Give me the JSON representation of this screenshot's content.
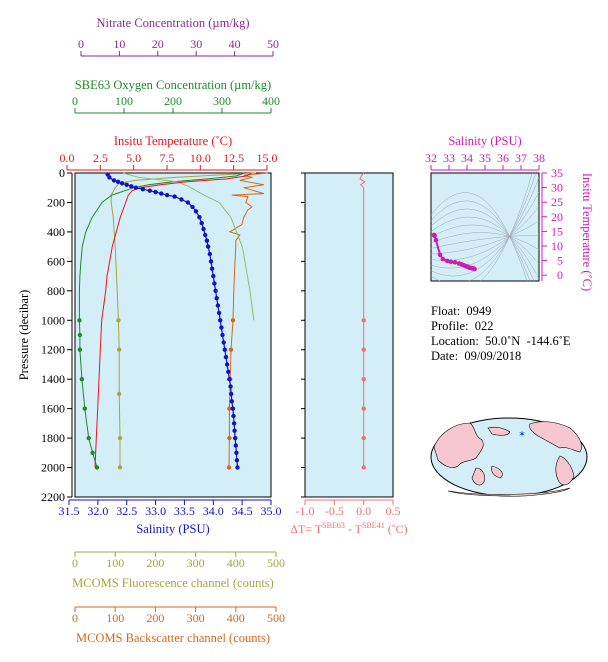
{
  "colors": {
    "nitrate": "#8b2d8b",
    "oxygen": "#1f8a2a",
    "temperature": "#e8141e",
    "salinity": "#1212c8",
    "fluorescence": "#a5a546",
    "backscatter": "#d2691e",
    "delta_t": "#f07070",
    "ts_axis": "#d01ab8",
    "plot_bg": "#d4eef8"
  },
  "labels": {
    "nitrate_title": "Nitrate Concentration (µm/kg)",
    "oxygen_title": "SBE63 Oxygen Concentration (µm/kg)",
    "temperature_title": "Insitu Temperature (˚C)",
    "salinity_title": "Salinity (PSU)",
    "pressure_title": "Pressure (decibar)",
    "fluorescence_title": "MCOMS Fluorescence channel (counts)",
    "backscatter_title": "MCOMS Backscatter channel (counts)",
    "ts_top_title": "Salinity (PSU)",
    "ts_right_title": "Insitu Temperature (˚C)",
    "delta_prefix": "ΔT= T",
    "delta_sup1": "SBE63",
    "delta_mid": " - T",
    "delta_sup2": "SBE41",
    "delta_suffix": " (˚C)"
  },
  "info": {
    "float": "Float:  0949",
    "profile": "Profile:  022",
    "location": "Location:  50.0˚N  -144.6˚E",
    "date": "Date:  09/09/2018"
  },
  "chart_data": [
    {
      "type": "line",
      "panel": "profiles",
      "ylim": [
        2200,
        0
      ],
      "y_ticks": [
        0,
        200,
        400,
        600,
        800,
        1000,
        1200,
        1400,
        1600,
        1800,
        2000,
        2200
      ],
      "axes": {
        "nitrate": {
          "range": [
            0,
            50
          ],
          "ticks": [
            0,
            10,
            20,
            30,
            40,
            50
          ]
        },
        "oxygen": {
          "range": [
            0,
            400
          ],
          "ticks": [
            0,
            100,
            200,
            300,
            400
          ]
        },
        "temperature": {
          "range": [
            0,
            15
          ],
          "ticks": [
            "0.0",
            "2.5",
            "5.0",
            "7.5",
            "10.0",
            "12.5",
            "15.0"
          ]
        },
        "salinity": {
          "range": [
            31.5,
            35
          ],
          "ticks": [
            "31.5",
            "32.0",
            "32.5",
            "33.0",
            "33.5",
            "34.0",
            "34.5",
            "35.0"
          ]
        },
        "fluorescence": {
          "range": [
            0,
            500
          ],
          "ticks": [
            0,
            100,
            200,
            300,
            400,
            500
          ]
        },
        "backscatter": {
          "range": [
            0,
            500
          ],
          "ticks": [
            0,
            100,
            200,
            300,
            400,
            500
          ]
        }
      },
      "series": {
        "salinity": {
          "p": [
            10,
            30,
            50,
            60,
            70,
            80,
            90,
            100,
            110,
            120,
            130,
            140,
            150,
            160,
            180,
            200,
            230,
            260,
            300,
            340,
            380,
            420,
            460,
            500,
            550,
            600,
            650,
            700,
            750,
            800,
            850,
            900,
            950,
            1000,
            1050,
            1100,
            1150,
            1200,
            1250,
            1300,
            1350,
            1400,
            1450,
            1500,
            1550,
            1600,
            1650,
            1700,
            1750,
            1800,
            1850,
            1900,
            1950,
            2000
          ],
          "v": [
            32.17,
            32.2,
            32.28,
            32.35,
            32.42,
            32.5,
            32.58,
            32.66,
            32.78,
            32.9,
            33.0,
            33.1,
            33.2,
            33.33,
            33.45,
            33.56,
            33.64,
            33.7,
            33.76,
            33.8,
            33.83,
            33.86,
            33.89,
            33.91,
            33.94,
            33.96,
            33.98,
            34.0,
            34.02,
            34.04,
            34.06,
            34.08,
            34.1,
            34.12,
            34.14,
            34.16,
            34.18,
            34.2,
            34.22,
            34.24,
            34.26,
            34.28,
            34.3,
            34.31,
            34.32,
            34.34,
            34.35,
            34.36,
            34.37,
            34.38,
            34.39,
            34.4,
            34.41,
            34.42
          ]
        },
        "temperature": {
          "p": [
            0,
            20,
            40,
            60,
            80,
            100,
            120,
            150,
            200,
            300,
            400,
            500,
            600,
            700,
            800,
            1000,
            1200,
            1400,
            1600,
            1800,
            2000
          ],
          "v": [
            13.8,
            13.5,
            12.0,
            9.0,
            7.0,
            5.5,
            4.9,
            4.6,
            4.4,
            4.0,
            3.7,
            3.4,
            3.2,
            3.0,
            2.9,
            2.6,
            2.5,
            2.4,
            2.3,
            2.2,
            2.1
          ]
        },
        "oxygen": {
          "p": [
            0,
            20,
            40,
            60,
            80,
            100,
            150,
            200,
            300,
            400,
            500,
            600,
            700,
            800,
            900,
            1000,
            1100,
            1200,
            1400,
            1600,
            1800,
            1900,
            2000
          ],
          "v": [
            345,
            330,
            270,
            200,
            150,
            120,
            75,
            55,
            35,
            22,
            15,
            12,
            10,
            9,
            9,
            9,
            10,
            10,
            14,
            20,
            28,
            36,
            45
          ]
        },
        "nitrate": {
          "p": [
            0,
            30,
            60,
            90,
            120,
            150,
            200,
            300,
            500,
            800,
            1000
          ],
          "v": [
            11,
            15,
            25,
            28,
            30,
            32,
            36,
            39,
            42,
            44,
            45
          ]
        },
        "fluorescence": {
          "p": [
            0,
            10,
            30,
            50,
            70,
            100,
            150,
            200,
            300,
            500,
            800,
            1000,
            1200,
            1500,
            1800,
            2000
          ],
          "v": [
            450,
            380,
            250,
            150,
            110,
            100,
            90,
            90,
            95,
            100,
            105,
            108,
            110,
            110,
            112,
            112
          ]
        },
        "backscatter": {
          "p": [
            0,
            15,
            30,
            50,
            80,
            100,
            140,
            150,
            160,
            200,
            230,
            250,
            300,
            350,
            400,
            420,
            460,
            500,
            600,
            800,
            900,
            1000,
            1200,
            1400,
            1600,
            1800,
            2000
          ],
          "v": [
            480,
            420,
            440,
            410,
            470,
            420,
            470,
            390,
            430,
            425,
            440,
            430,
            420,
            415,
            385,
            410,
            400,
            400,
            398,
            395,
            394,
            393,
            388,
            386,
            384,
            384,
            383
          ]
        }
      }
    },
    {
      "type": "line",
      "panel": "delta_t",
      "xlim": [
        -1.0,
        0.5
      ],
      "x_ticks": [
        "-1.0",
        "-0.5",
        "0.0",
        "0.5"
      ],
      "p": [
        0,
        20,
        40,
        60,
        80,
        100,
        120,
        150,
        200,
        400,
        600,
        800,
        1000,
        1200,
        1400,
        1600,
        1800,
        2000
      ],
      "v": [
        0.0,
        -0.04,
        -0.06,
        0.02,
        -0.05,
        0.0,
        0.0,
        0.0,
        0.0,
        0.0,
        0.0,
        0.0,
        0.0,
        0.0,
        0.0,
        0.0,
        0.0,
        0.0
      ]
    },
    {
      "type": "scatter",
      "panel": "ts_diagram",
      "xlim": [
        32,
        38
      ],
      "x_ticks": [
        32,
        33,
        34,
        35,
        36,
        37,
        38
      ],
      "ylim": [
        -2,
        35
      ],
      "y_ticks": [
        0,
        5,
        10,
        15,
        20,
        25,
        30,
        35
      ],
      "salinity": [
        32.17,
        32.2,
        32.28,
        32.5,
        32.66,
        32.9,
        33.1,
        33.33,
        33.56,
        33.7,
        33.8,
        33.89,
        33.96,
        34.04,
        34.12,
        34.2,
        34.28,
        34.34,
        34.38,
        34.42
      ],
      "temperature": [
        13.8,
        13.5,
        12.0,
        7.0,
        5.5,
        4.9,
        4.6,
        4.4,
        4.0,
        3.7,
        3.4,
        3.2,
        3.0,
        2.9,
        2.6,
        2.5,
        2.4,
        2.3,
        2.2,
        2.1
      ]
    }
  ]
}
